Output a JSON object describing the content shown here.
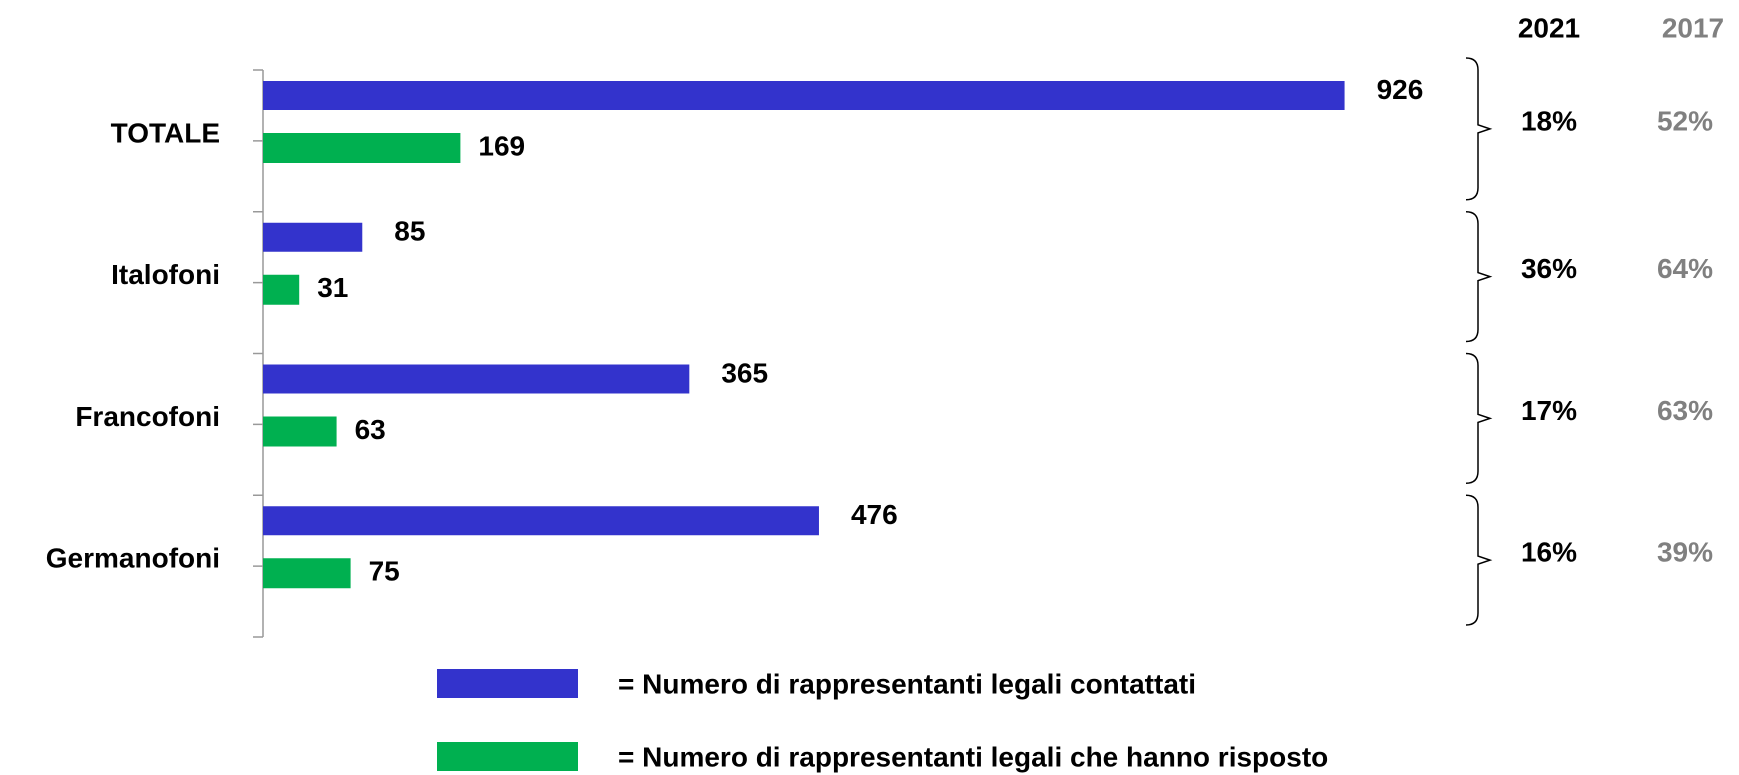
{
  "chart_data": {
    "type": "bar",
    "orientation": "horizontal",
    "categories": [
      "TOTALE",
      "Italofoni",
      "Francofoni",
      "Germanofoni"
    ],
    "series": [
      {
        "name": "= Numero di rappresentanti legali contattati",
        "color": "#3333cc",
        "values": [
          926,
          85,
          365,
          476
        ]
      },
      {
        "name": "= Numero di rappresentanti legali che hanno risposto",
        "color": "#00b050",
        "values": [
          169,
          31,
          63,
          75
        ]
      }
    ],
    "xlim": [
      0,
      1000
    ],
    "columns": [
      {
        "header": "2021",
        "color": "#000000",
        "values": [
          18,
          36,
          17,
          16
        ],
        "value_labels": [
          "18%",
          "36%",
          "17%",
          "16%"
        ]
      },
      {
        "header": "2017",
        "color": "#808080",
        "values": [
          52,
          64,
          63,
          39
        ],
        "value_labels": [
          "52%",
          "64%",
          "63%",
          "39%"
        ]
      }
    ]
  }
}
